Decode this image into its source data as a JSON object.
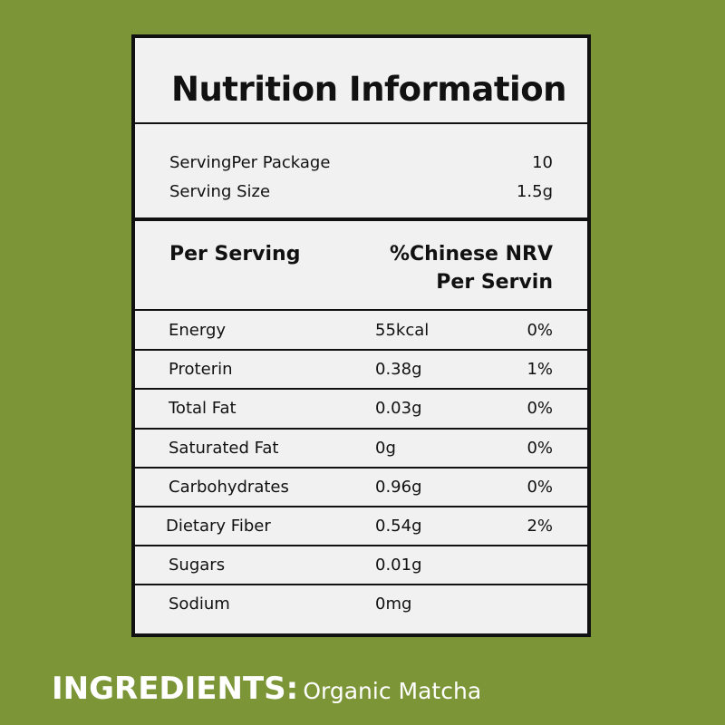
{
  "label": {
    "title": "Nutrition Information",
    "serving": {
      "per_package_label": "ServingPer Package",
      "per_package_value": "10",
      "size_label": "Serving Size",
      "size_value": "1.5g"
    },
    "header": {
      "left": "Per Serving",
      "right_line1": "%Chinese NRV",
      "right_line2": "Per Servin"
    },
    "rows": [
      {
        "name": "Energy",
        "amount": "55kcal",
        "nrv": "0%"
      },
      {
        "name": "Proterin",
        "amount": "0.38g",
        "nrv": "1%"
      },
      {
        "name": "Total Fat",
        "amount": "0.03g",
        "nrv": "0%"
      },
      {
        "name": "Saturated Fat",
        "amount": "0g",
        "nrv": "0%"
      },
      {
        "name": "Carbohydrates",
        "amount": "0.96g",
        "nrv": "0%"
      },
      {
        "name": "Dietary Fiber",
        "amount": "0.54g",
        "nrv": "2%"
      },
      {
        "name": "Sugars",
        "amount": "0.01g"
      },
      {
        "name": "Sodium",
        "amount": "0mg"
      }
    ]
  },
  "ingredients": {
    "label": "INGREDIENTS:",
    "text": "Organic Matcha"
  }
}
